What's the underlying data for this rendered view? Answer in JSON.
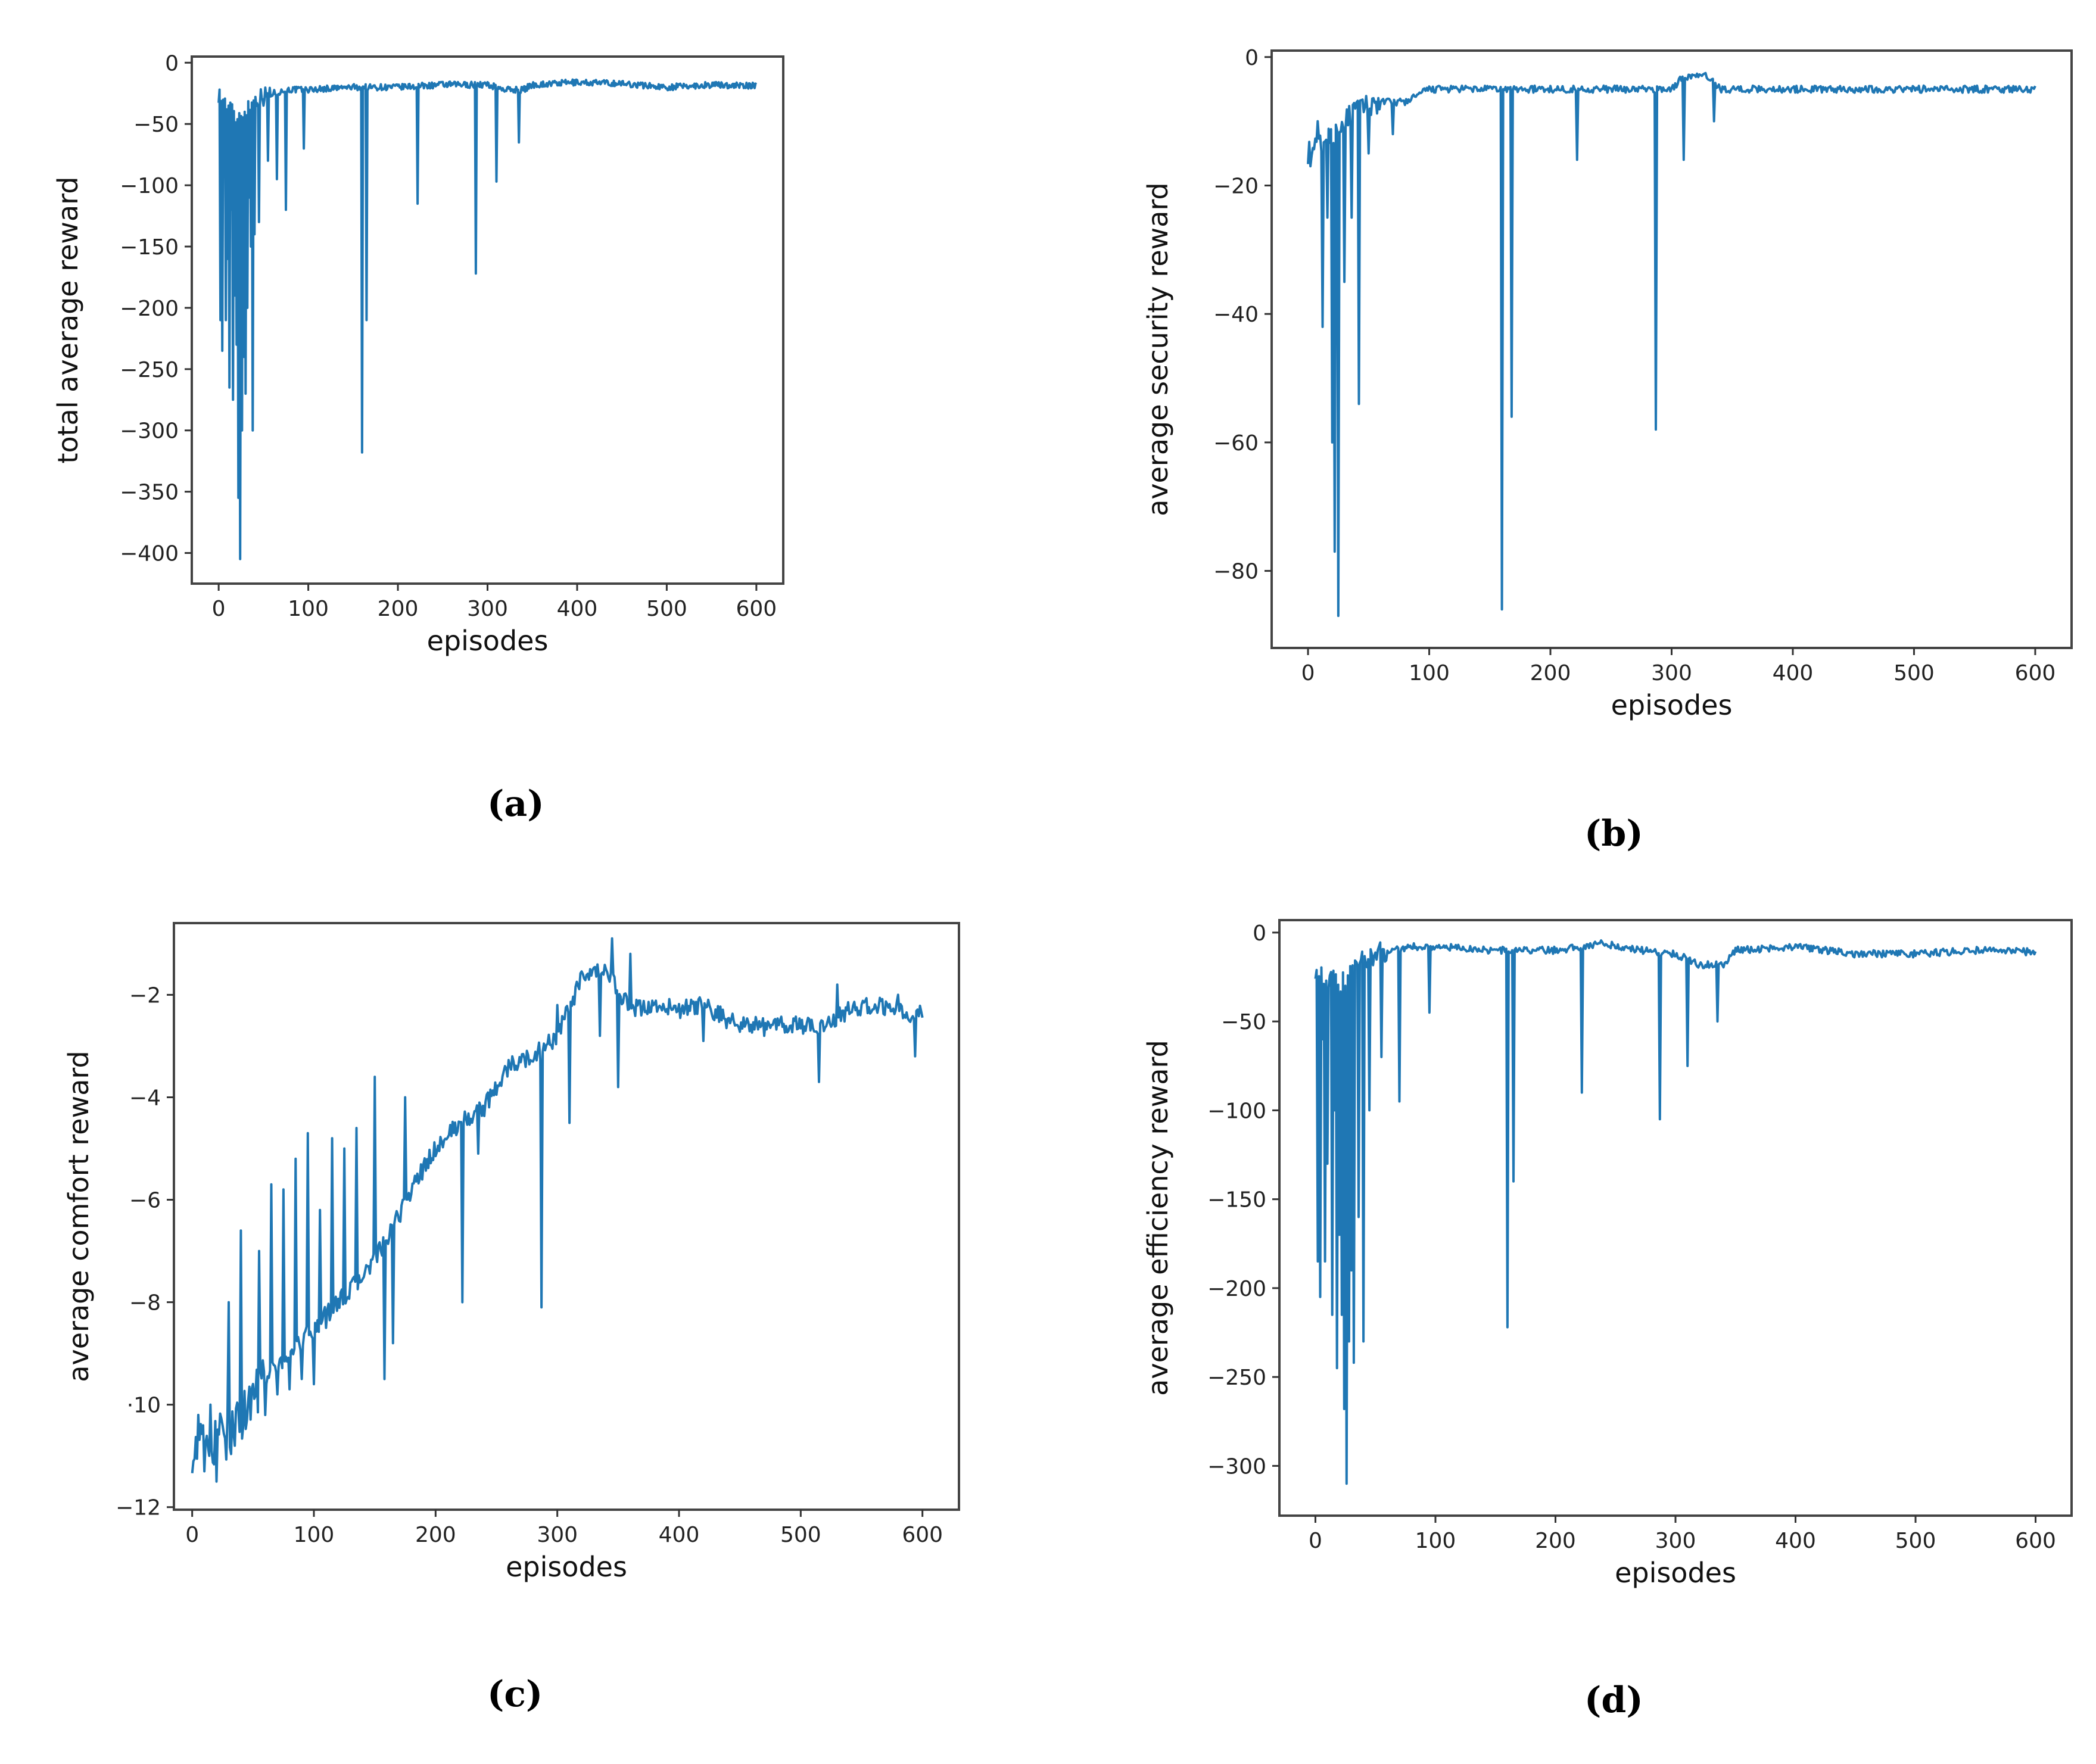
{
  "colors": {
    "series": "#1f77b4",
    "frame": "#444444"
  },
  "panel_labels": [
    "(a)",
    "(b)",
    "(c)",
    "(d)"
  ],
  "chart_data": [
    {
      "type": "line",
      "panel": "a",
      "title": "",
      "xlabel": "episodes",
      "ylabel": "total average reward",
      "xlim": [
        -30,
        630
      ],
      "ylim": [
        -425,
        5
      ],
      "xticks": [
        0,
        100,
        200,
        300,
        400,
        500,
        600
      ],
      "yticks": [
        0,
        -50,
        -100,
        -150,
        -200,
        -250,
        -300,
        -350,
        -400
      ],
      "ytick_labels": [
        "0",
        "−50",
        "−100",
        "−150",
        "−200",
        "−250",
        "−300",
        "−350",
        "−400"
      ],
      "baseline": [
        [
          0,
          -25
        ],
        [
          20,
          -45
        ],
        [
          40,
          -30
        ],
        [
          60,
          -25
        ],
        [
          80,
          -22
        ],
        [
          100,
          -22
        ],
        [
          150,
          -20
        ],
        [
          200,
          -20
        ],
        [
          250,
          -18
        ],
        [
          300,
          -18
        ],
        [
          320,
          -22
        ],
        [
          340,
          -22
        ],
        [
          350,
          -18
        ],
        [
          400,
          -16
        ],
        [
          450,
          -17
        ],
        [
          500,
          -20
        ],
        [
          550,
          -18
        ],
        [
          600,
          -19
        ]
      ],
      "spikes": [
        [
          2,
          -210
        ],
        [
          4,
          -235
        ],
        [
          6,
          -90
        ],
        [
          8,
          -210
        ],
        [
          10,
          -160
        ],
        [
          12,
          -265
        ],
        [
          14,
          -120
        ],
        [
          16,
          -275
        ],
        [
          18,
          -190
        ],
        [
          20,
          -230
        ],
        [
          22,
          -355
        ],
        [
          24,
          -405
        ],
        [
          26,
          -300
        ],
        [
          28,
          -240
        ],
        [
          30,
          -270
        ],
        [
          32,
          -200
        ],
        [
          34,
          -110
        ],
        [
          36,
          -150
        ],
        [
          38,
          -300
        ],
        [
          40,
          -140
        ],
        [
          45,
          -130
        ],
        [
          55,
          -80
        ],
        [
          65,
          -95
        ],
        [
          75,
          -120
        ],
        [
          95,
          -70
        ],
        [
          160,
          -318
        ],
        [
          165,
          -210
        ],
        [
          222,
          -115
        ],
        [
          287,
          -172
        ],
        [
          310,
          -97
        ],
        [
          335,
          -65
        ]
      ]
    },
    {
      "type": "line",
      "panel": "b",
      "title": "",
      "xlabel": "episodes",
      "ylabel": "average security reward",
      "xlim": [
        -30,
        630
      ],
      "ylim": [
        -92,
        1
      ],
      "xticks": [
        0,
        100,
        200,
        300,
        400,
        500,
        600
      ],
      "yticks": [
        0,
        -20,
        -40,
        -60,
        -80
      ],
      "ytick_labels": [
        "0",
        "−20",
        "−40",
        "−60",
        "−80"
      ],
      "baseline": [
        [
          0,
          -15
        ],
        [
          20,
          -12
        ],
        [
          40,
          -8
        ],
        [
          60,
          -7
        ],
        [
          80,
          -7
        ],
        [
          100,
          -5
        ],
        [
          150,
          -5
        ],
        [
          200,
          -5
        ],
        [
          250,
          -5
        ],
        [
          300,
          -5
        ],
        [
          310,
          -3
        ],
        [
          330,
          -3
        ],
        [
          340,
          -5
        ],
        [
          400,
          -5
        ],
        [
          500,
          -5
        ],
        [
          600,
          -5
        ]
      ],
      "spikes": [
        [
          2,
          -17
        ],
        [
          8,
          -10
        ],
        [
          12,
          -42
        ],
        [
          16,
          -25
        ],
        [
          20,
          -60
        ],
        [
          22,
          -77
        ],
        [
          25,
          -87
        ],
        [
          30,
          -35
        ],
        [
          36,
          -25
        ],
        [
          42,
          -54
        ],
        [
          50,
          -15
        ],
        [
          70,
          -12
        ],
        [
          160,
          -86
        ],
        [
          168,
          -56
        ],
        [
          222,
          -16
        ],
        [
          287,
          -58
        ],
        [
          310,
          -16
        ],
        [
          335,
          -10
        ]
      ]
    },
    {
      "type": "line",
      "panel": "c",
      "title": "",
      "xlabel": "episodes",
      "ylabel": "average comfort reward",
      "xlim": [
        -15,
        630
      ],
      "ylim": [
        -12.05,
        -0.6
      ],
      "xticks": [
        0,
        100,
        200,
        300,
        400,
        500,
        600
      ],
      "yticks": [
        -2,
        -4,
        -6,
        -8,
        -10,
        -12
      ],
      "ytick_labels": [
        "−2",
        "−4",
        "−6",
        "−8",
        "·10",
        "−12"
      ],
      "baseline": [
        [
          0,
          -10.8
        ],
        [
          20,
          -10.8
        ],
        [
          40,
          -10.2
        ],
        [
          60,
          -9.5
        ],
        [
          80,
          -9.0
        ],
        [
          100,
          -8.5
        ],
        [
          120,
          -8.0
        ],
        [
          140,
          -7.5
        ],
        [
          160,
          -6.8
        ],
        [
          180,
          -5.8
        ],
        [
          200,
          -5.0
        ],
        [
          220,
          -4.5
        ],
        [
          240,
          -4.2
        ],
        [
          260,
          -3.4
        ],
        [
          280,
          -3.2
        ],
        [
          300,
          -2.8
        ],
        [
          320,
          -1.7
        ],
        [
          340,
          -1.5
        ],
        [
          360,
          -2.3
        ],
        [
          380,
          -2.2
        ],
        [
          400,
          -2.3
        ],
        [
          420,
          -2.2
        ],
        [
          440,
          -2.5
        ],
        [
          460,
          -2.6
        ],
        [
          500,
          -2.6
        ],
        [
          520,
          -2.6
        ],
        [
          540,
          -2.3
        ],
        [
          560,
          -2.2
        ],
        [
          580,
          -2.3
        ],
        [
          600,
          -2.4
        ]
      ],
      "spikes": [
        [
          5,
          -10.2
        ],
        [
          10,
          -11.3
        ],
        [
          15,
          -10.0
        ],
        [
          20,
          -11.5
        ],
        [
          25,
          -10.4
        ],
        [
          30,
          -8.0
        ],
        [
          35,
          -10.8
        ],
        [
          40,
          -6.6
        ],
        [
          45,
          -10.3
        ],
        [
          55,
          -7.0
        ],
        [
          60,
          -10.2
        ],
        [
          65,
          -5.7
        ],
        [
          70,
          -9.8
        ],
        [
          75,
          -5.8
        ],
        [
          80,
          -9.7
        ],
        [
          85,
          -5.2
        ],
        [
          90,
          -9.5
        ],
        [
          95,
          -4.7
        ],
        [
          100,
          -9.6
        ],
        [
          105,
          -6.2
        ],
        [
          110,
          -8.5
        ],
        [
          115,
          -4.8
        ],
        [
          125,
          -5.0
        ],
        [
          135,
          -4.6
        ],
        [
          150,
          -3.6
        ],
        [
          158,
          -9.5
        ],
        [
          165,
          -8.8
        ],
        [
          175,
          -4.0
        ],
        [
          222,
          -8.0
        ],
        [
          235,
          -5.1
        ],
        [
          287,
          -8.1
        ],
        [
          300,
          -2.2
        ],
        [
          310,
          -4.5
        ],
        [
          335,
          -2.8
        ],
        [
          345,
          -0.9
        ],
        [
          350,
          -3.8
        ],
        [
          360,
          -1.2
        ],
        [
          420,
          -2.9
        ],
        [
          470,
          -2.8
        ],
        [
          515,
          -3.7
        ],
        [
          530,
          -1.8
        ],
        [
          580,
          -2.0
        ],
        [
          594,
          -3.2
        ]
      ]
    },
    {
      "type": "line",
      "panel": "d",
      "title": "",
      "xlabel": "episodes",
      "ylabel": "average efficiency reward",
      "xlim": [
        -30,
        630
      ],
      "ylim": [
        -328,
        7
      ],
      "xticks": [
        0,
        100,
        200,
        300,
        400,
        500,
        600
      ],
      "yticks": [
        0,
        -50,
        -100,
        -150,
        -200,
        -250,
        -300
      ],
      "ytick_labels": [
        "0",
        "−50",
        "−100",
        "−150",
        "−200",
        "−250",
        "−300"
      ],
      "baseline": [
        [
          0,
          -20
        ],
        [
          20,
          -30
        ],
        [
          40,
          -15
        ],
        [
          60,
          -10
        ],
        [
          80,
          -8
        ],
        [
          100,
          -8
        ],
        [
          150,
          -10
        ],
        [
          200,
          -10
        ],
        [
          240,
          -6
        ],
        [
          260,
          -9
        ],
        [
          300,
          -12
        ],
        [
          320,
          -18
        ],
        [
          340,
          -18
        ],
        [
          350,
          -10
        ],
        [
          400,
          -8
        ],
        [
          450,
          -12
        ],
        [
          500,
          -12
        ],
        [
          550,
          -10
        ],
        [
          600,
          -11
        ]
      ],
      "spikes": [
        [
          2,
          -185
        ],
        [
          4,
          -205
        ],
        [
          6,
          -60
        ],
        [
          8,
          -185
        ],
        [
          10,
          -130
        ],
        [
          14,
          -215
        ],
        [
          16,
          -100
        ],
        [
          18,
          -245
        ],
        [
          20,
          -170
        ],
        [
          22,
          -215
        ],
        [
          24,
          -268
        ],
        [
          26,
          -310
        ],
        [
          28,
          -230
        ],
        [
          30,
          -190
        ],
        [
          32,
          -242
        ],
        [
          36,
          -160
        ],
        [
          40,
          -230
        ],
        [
          45,
          -100
        ],
        [
          55,
          -70
        ],
        [
          70,
          -95
        ],
        [
          95,
          -45
        ],
        [
          160,
          -222
        ],
        [
          165,
          -140
        ],
        [
          222,
          -90
        ],
        [
          287,
          -105
        ],
        [
          310,
          -75
        ],
        [
          335,
          -50
        ]
      ]
    }
  ]
}
